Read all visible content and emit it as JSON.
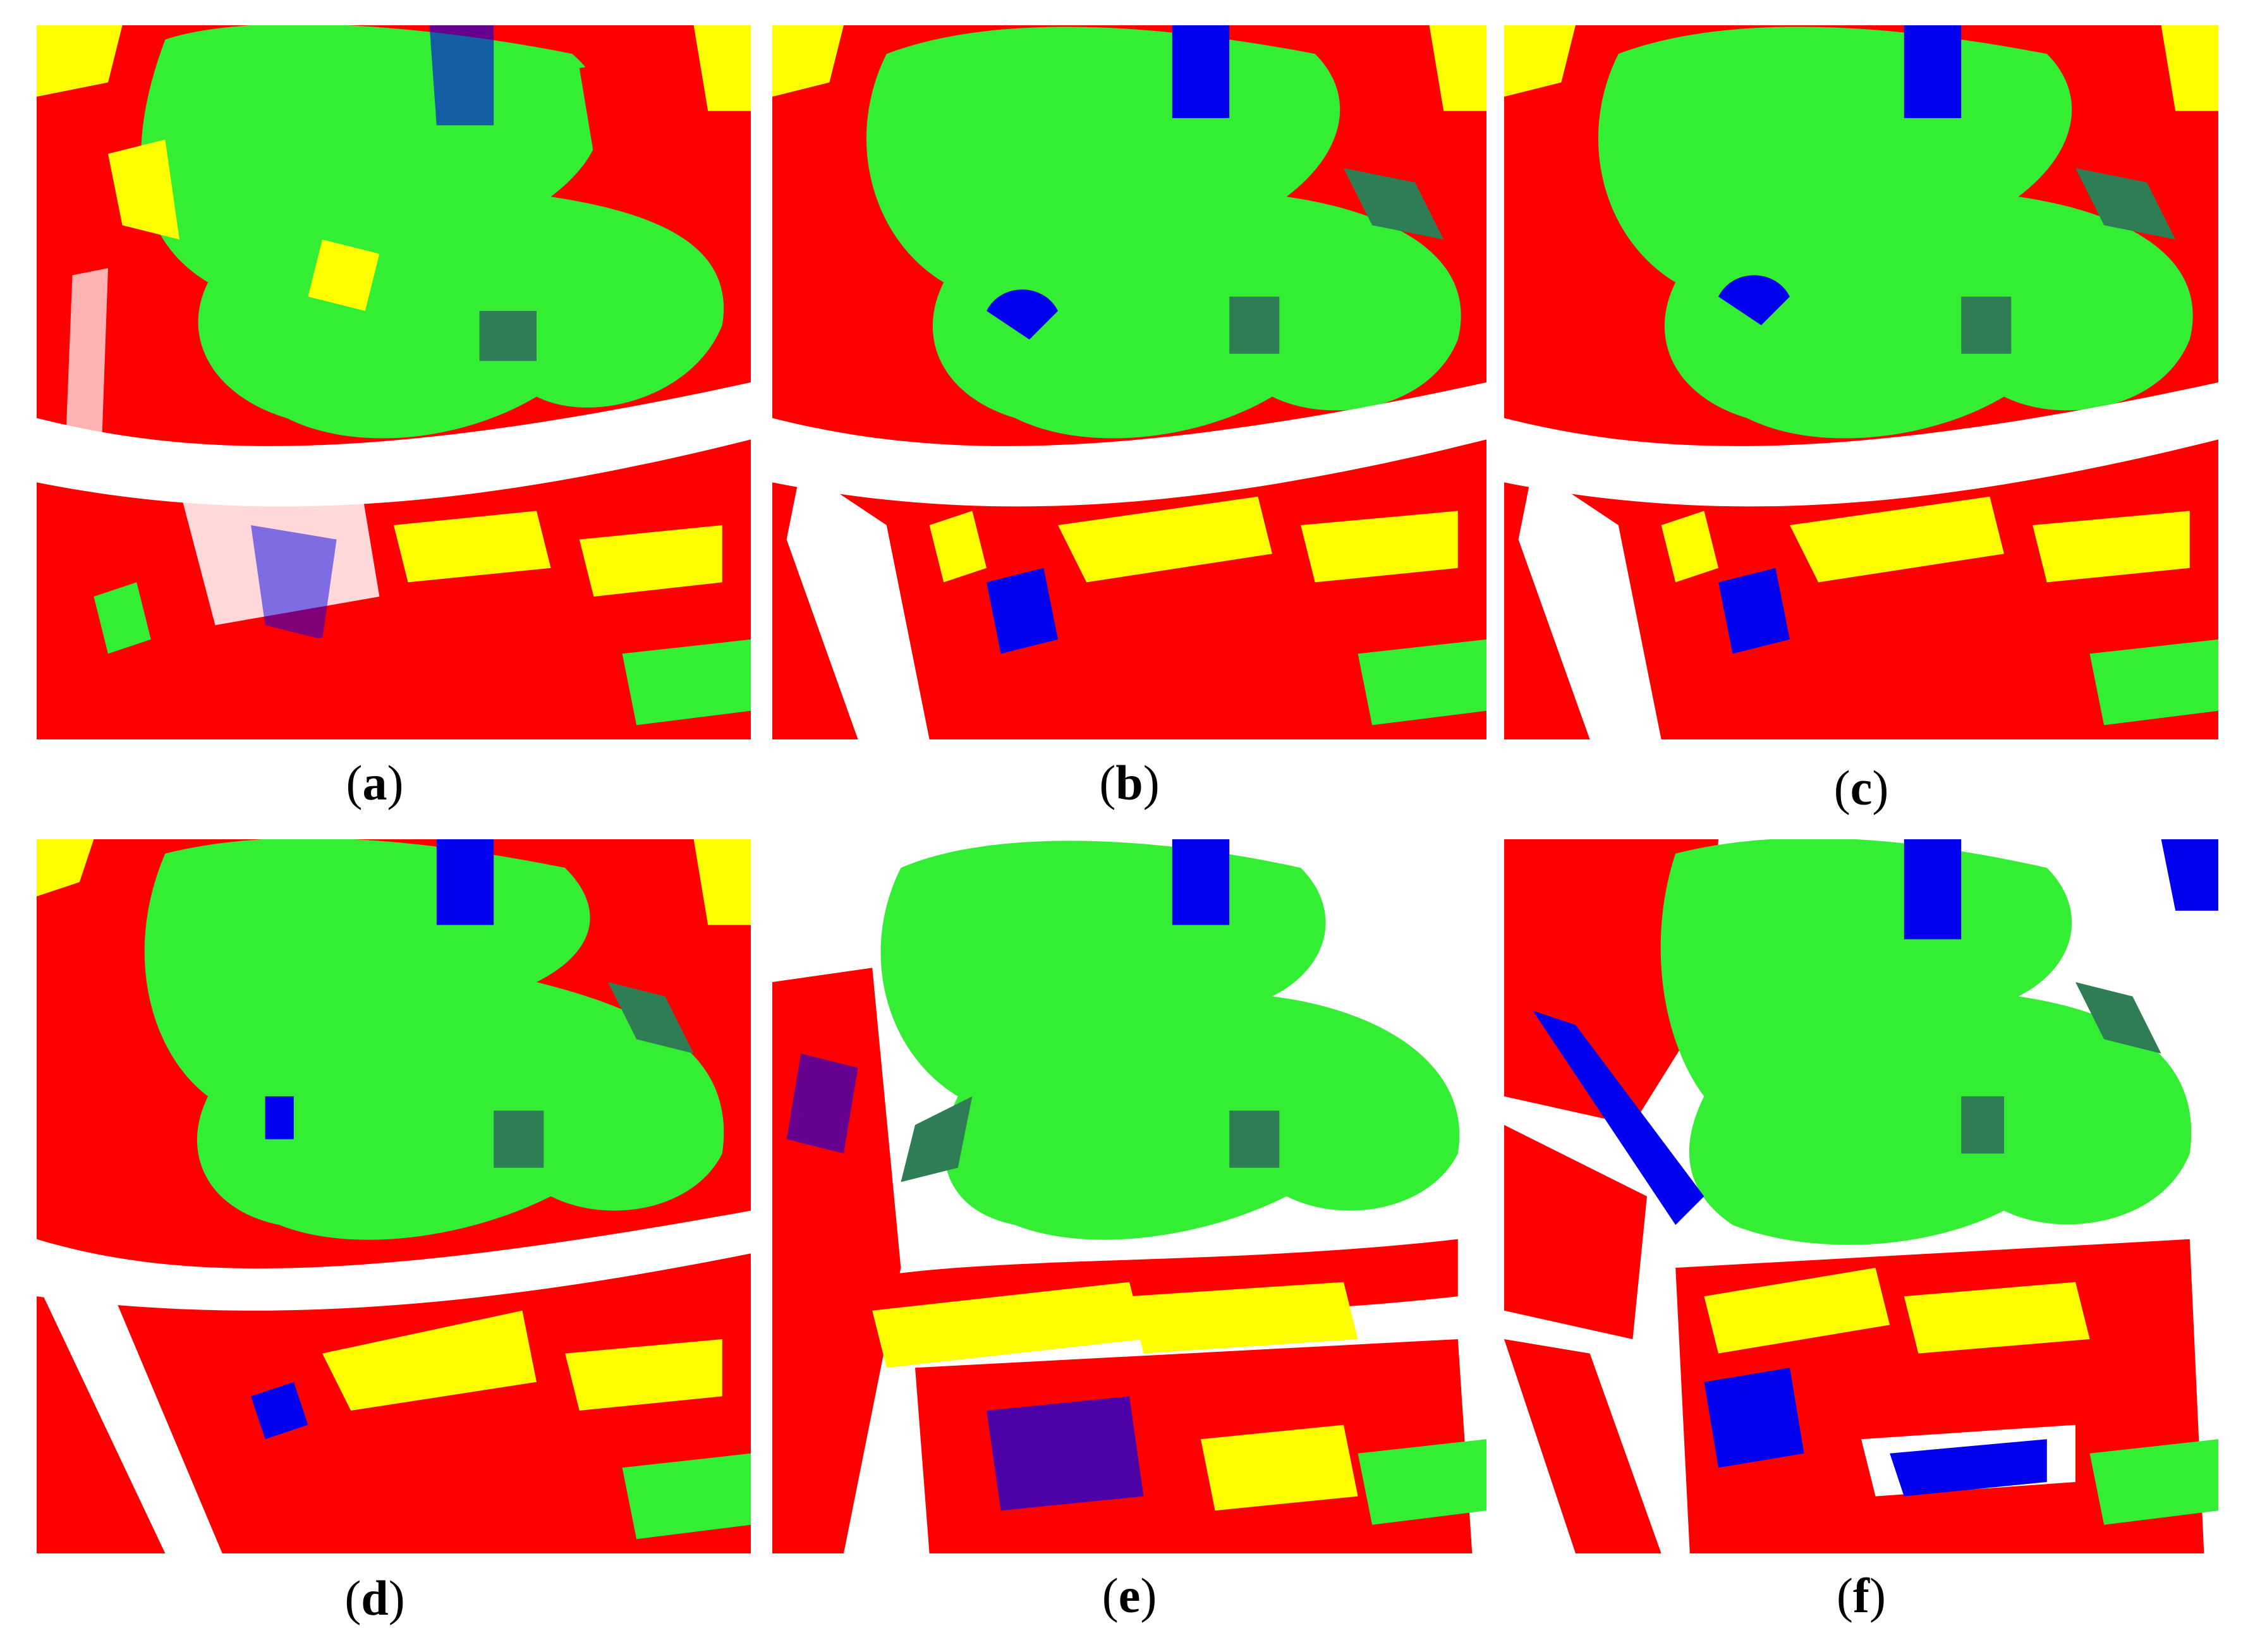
{
  "figure": {
    "panels": [
      {
        "id": "a",
        "label": "a"
      },
      {
        "id": "b",
        "label": "b"
      },
      {
        "id": "c",
        "label": "c"
      },
      {
        "id": "d",
        "label": "d"
      },
      {
        "id": "e",
        "label": "e"
      },
      {
        "id": "f",
        "label": "f"
      }
    ]
  },
  "legend_colors": {
    "building": "#ff0000",
    "vegetation": "#33ee33",
    "road": "#ffff00",
    "water": "#0000ee",
    "dark_vegetation": "#2e7d55",
    "background": "#ffffff"
  }
}
